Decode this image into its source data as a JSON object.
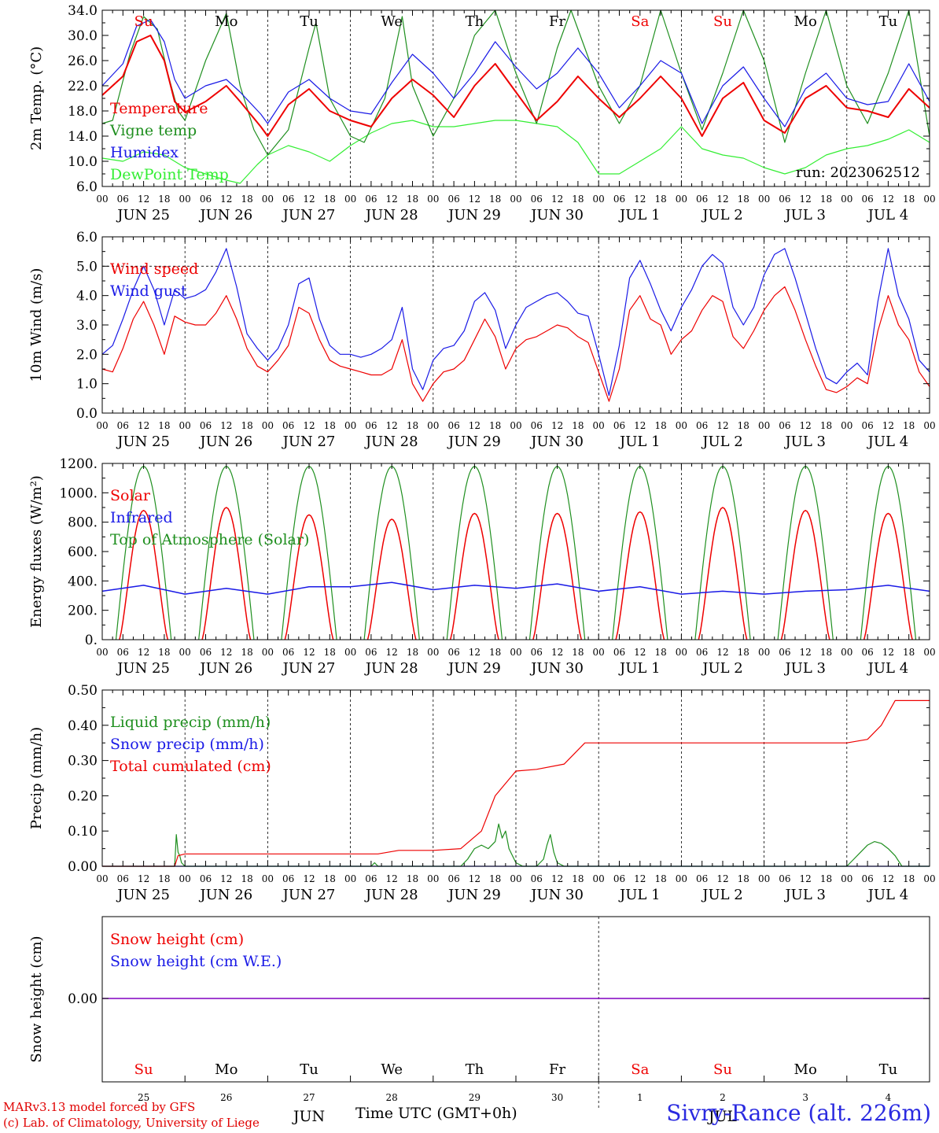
{
  "colors": {
    "red": "#ee0000",
    "dark_green": "#1f8f1f",
    "blue": "#1a1ae6",
    "light_green": "#33ee33",
    "purple": "#8000c0",
    "black": "#000000"
  },
  "run_label": "run: 2023062512",
  "day_labels": [
    "Su",
    "Mo",
    "Tu",
    "We",
    "Th",
    "Fr",
    "Sa",
    "Su",
    "Mo",
    "Tu"
  ],
  "date_labels": [
    "JUN 25",
    "JUN 26",
    "JUN 27",
    "JUN 28",
    "JUN 29",
    "JUN 30",
    "JUL  1",
    "JUL  2",
    "JUL  3",
    "JUL  4"
  ],
  "hour_labels": [
    "00",
    "06",
    "12",
    "18"
  ],
  "hour_end_label": "00",
  "bottom_day_numbers": [
    "25",
    "26",
    "27",
    "28",
    "29",
    "30",
    "1",
    "2",
    "3",
    "4"
  ],
  "bottom_month_labels": [
    "JUN",
    "JUL"
  ],
  "xaxis_title": "Time UTC (GMT+0h)",
  "credit_line1": "MARv3.13 model forced by GFS",
  "credit_line2": "(c) Lab. of Climatology, University of Liege",
  "station": "Sivry-Rance (alt. 226m)",
  "chart_data": [
    {
      "type": "line",
      "id": "temperature",
      "ylabel": "2m Temp. (°C)",
      "ylim": [
        6,
        34
      ],
      "yticks": [
        "6.0",
        "10.0",
        "14.0",
        "18.0",
        "22.0",
        "26.0",
        "30.0",
        "34.0"
      ],
      "x_unit": "hours since 2023-06-25 00 UTC",
      "grid": "vertical dashed at 00 UTC",
      "legend": [
        "Temperature",
        "Vigne temp",
        "Humidex",
        "DewPoint Temp"
      ],
      "series": [
        {
          "name": "Temperature",
          "color": "red",
          "x": [
            0,
            6,
            10,
            14,
            18,
            21,
            24,
            30,
            36,
            40,
            46,
            48,
            54,
            60,
            66,
            72,
            78,
            84,
            90,
            96,
            102,
            108,
            114,
            120,
            126,
            132,
            138,
            144,
            150,
            156,
            162,
            168,
            174,
            180,
            186,
            192,
            198,
            204,
            210,
            216,
            222,
            228,
            234,
            240
          ],
          "y": [
            20.5,
            23.5,
            29.0,
            30.0,
            26.0,
            19.5,
            17.8,
            19.5,
            22.0,
            19.5,
            15.5,
            14.0,
            19.0,
            21.5,
            18.0,
            16.5,
            15.5,
            20.0,
            23.0,
            20.5,
            17.0,
            22.0,
            25.5,
            21.0,
            16.5,
            19.5,
            23.5,
            20.0,
            17.0,
            20.0,
            23.5,
            20.0,
            14.0,
            20.0,
            22.5,
            16.5,
            14.5,
            20.0,
            22.0,
            18.5,
            18.0,
            17.0,
            21.5,
            18.5
          ]
        },
        {
          "name": "Vigne temp",
          "color": "dark_green",
          "x": [
            0,
            3,
            8,
            12,
            16,
            19,
            22,
            24,
            30,
            36,
            40,
            44,
            48,
            54,
            60,
            62,
            66,
            72,
            76,
            82,
            87,
            90,
            96,
            102,
            108,
            114,
            120,
            126,
            132,
            136,
            144,
            150,
            156,
            162,
            168,
            174,
            180,
            186,
            192,
            198,
            204,
            210,
            216,
            222,
            228,
            234,
            240
          ],
          "y": [
            16.0,
            16.5,
            27.0,
            33.0,
            31.0,
            24.0,
            18.0,
            16.5,
            26.0,
            33.5,
            22.0,
            15.0,
            11.0,
            15.0,
            28.0,
            32.0,
            20.0,
            14.0,
            13.0,
            20.0,
            33.0,
            22.0,
            14.0,
            20.0,
            30.0,
            34.0,
            24.0,
            16.0,
            28.0,
            34.0,
            22.0,
            16.0,
            22.0,
            34.0,
            24.0,
            15.0,
            24.0,
            34.0,
            26.0,
            13.0,
            24.0,
            34.0,
            22.0,
            16.0,
            24.0,
            34.0,
            14.0
          ]
        },
        {
          "name": "Humidex",
          "color": "blue",
          "x": [
            0,
            6,
            10,
            14,
            18,
            21,
            24,
            30,
            36,
            40,
            46,
            48,
            54,
            60,
            66,
            72,
            78,
            84,
            90,
            96,
            102,
            108,
            114,
            120,
            126,
            132,
            138,
            144,
            150,
            156,
            162,
            168,
            174,
            180,
            186,
            192,
            198,
            204,
            210,
            216,
            222,
            228,
            234,
            240
          ],
          "y": [
            22.0,
            25.5,
            31.5,
            32.5,
            29.0,
            23.0,
            20.0,
            22.0,
            23.0,
            21.0,
            17.5,
            16.0,
            21.0,
            23.0,
            20.0,
            18.0,
            17.5,
            22.5,
            27.0,
            24.0,
            20.0,
            24.0,
            29.0,
            25.0,
            21.5,
            24.0,
            28.0,
            24.0,
            18.5,
            22.0,
            26.0,
            24.0,
            16.0,
            22.0,
            25.0,
            20.0,
            15.5,
            21.5,
            24.0,
            20.0,
            19.0,
            19.5,
            25.5,
            19.5
          ]
        },
        {
          "name": "DewPoint Temp",
          "color": "light_green",
          "x": [
            0,
            6,
            12,
            18,
            24,
            30,
            36,
            40,
            45,
            48,
            54,
            60,
            66,
            72,
            78,
            84,
            90,
            96,
            102,
            108,
            114,
            120,
            126,
            132,
            138,
            144,
            150,
            156,
            162,
            168,
            174,
            180,
            186,
            192,
            198,
            204,
            210,
            216,
            222,
            228,
            234,
            240
          ],
          "y": [
            10.5,
            10.0,
            11.5,
            11.0,
            9.0,
            8.0,
            7.0,
            6.5,
            9.5,
            11.0,
            12.5,
            11.5,
            10.0,
            12.5,
            14.5,
            16.0,
            16.5,
            15.5,
            15.5,
            16.0,
            16.5,
            16.5,
            16.0,
            15.5,
            13.0,
            8.0,
            8.0,
            10.0,
            12.0,
            15.5,
            12.0,
            11.0,
            10.5,
            9.0,
            8.0,
            9.0,
            11.0,
            12.0,
            12.5,
            13.5,
            15.0,
            13.0
          ]
        }
      ]
    },
    {
      "type": "line",
      "id": "wind",
      "ylabel": "10m Wind (m/s)",
      "ylim": [
        0,
        6
      ],
      "yticks": [
        "0.0",
        "1.0",
        "2.0",
        "3.0",
        "4.0",
        "5.0",
        "6.0"
      ],
      "reference_line": 5.0,
      "legend": [
        "Wind speed",
        "Wind gust"
      ],
      "series": [
        {
          "name": "Wind speed",
          "color": "red",
          "x": [
            0,
            3,
            6,
            9,
            12,
            15,
            18,
            21,
            24,
            27,
            30,
            33,
            36,
            39,
            42,
            45,
            48,
            51,
            54,
            57,
            60,
            63,
            66,
            69,
            72,
            75,
            78,
            81,
            84,
            87,
            90,
            93,
            96,
            99,
            102,
            105,
            108,
            111,
            114,
            117,
            120,
            123,
            126,
            129,
            132,
            135,
            138,
            141,
            144,
            147,
            150,
            153,
            156,
            159,
            162,
            165,
            168,
            171,
            174,
            177,
            180,
            183,
            186,
            189,
            192,
            195,
            198,
            201,
            204,
            207,
            210,
            213,
            216,
            219,
            222,
            225,
            228,
            231,
            234,
            237,
            240
          ],
          "y": [
            1.5,
            1.4,
            2.2,
            3.2,
            3.8,
            3.0,
            2.0,
            3.3,
            3.1,
            3.0,
            3.0,
            3.4,
            4.0,
            3.2,
            2.2,
            1.6,
            1.4,
            1.8,
            2.3,
            3.6,
            3.4,
            2.5,
            1.8,
            1.6,
            1.5,
            1.4,
            1.3,
            1.3,
            1.5,
            2.5,
            1.0,
            0.4,
            1.0,
            1.4,
            1.5,
            1.8,
            2.5,
            3.2,
            2.6,
            1.5,
            2.2,
            2.5,
            2.6,
            2.8,
            3.0,
            2.9,
            2.6,
            2.4,
            1.4,
            0.4,
            1.5,
            3.5,
            4.0,
            3.2,
            3.0,
            2.0,
            2.5,
            2.8,
            3.5,
            4.0,
            3.8,
            2.6,
            2.2,
            2.8,
            3.5,
            4.0,
            4.3,
            3.5,
            2.5,
            1.6,
            0.8,
            0.7,
            0.9,
            1.2,
            1.0,
            2.8,
            4.0,
            3.0,
            2.5,
            1.4,
            0.9
          ]
        },
        {
          "name": "Wind gust",
          "color": "blue",
          "x": [
            0,
            3,
            6,
            9,
            12,
            15,
            18,
            21,
            24,
            27,
            30,
            33,
            36,
            39,
            42,
            45,
            48,
            51,
            54,
            57,
            60,
            63,
            66,
            69,
            72,
            75,
            78,
            81,
            84,
            87,
            90,
            93,
            96,
            99,
            102,
            105,
            108,
            111,
            114,
            117,
            120,
            123,
            126,
            129,
            132,
            135,
            138,
            141,
            144,
            147,
            150,
            153,
            156,
            159,
            162,
            165,
            168,
            171,
            174,
            177,
            180,
            183,
            186,
            189,
            192,
            195,
            198,
            201,
            204,
            207,
            210,
            213,
            216,
            219,
            222,
            225,
            228,
            231,
            234,
            237,
            240
          ],
          "y": [
            2.0,
            2.3,
            3.2,
            4.2,
            5.0,
            4.2,
            3.0,
            4.2,
            3.9,
            4.0,
            4.2,
            4.8,
            5.6,
            4.3,
            2.7,
            2.2,
            1.8,
            2.2,
            3.0,
            4.4,
            4.6,
            3.2,
            2.3,
            2.0,
            2.0,
            1.9,
            2.0,
            2.2,
            2.5,
            3.6,
            1.5,
            0.8,
            1.8,
            2.2,
            2.3,
            2.8,
            3.8,
            4.1,
            3.5,
            2.2,
            3.0,
            3.6,
            3.8,
            4.0,
            4.1,
            3.8,
            3.4,
            3.3,
            2.0,
            0.6,
            2.3,
            4.6,
            5.2,
            4.4,
            3.5,
            2.8,
            3.6,
            4.2,
            5.0,
            5.4,
            5.1,
            3.6,
            3.0,
            3.6,
            4.7,
            5.4,
            5.6,
            4.6,
            3.4,
            2.2,
            1.2,
            1.0,
            1.4,
            1.7,
            1.3,
            3.8,
            5.6,
            4.0,
            3.2,
            1.8,
            1.4
          ]
        }
      ]
    },
    {
      "type": "line",
      "id": "energy",
      "ylabel": "Energy fluxes (W/m²)",
      "ylim": [
        0,
        1200
      ],
      "yticks": [
        "0.",
        "200.",
        "400.",
        "600.",
        "800.",
        "1000.",
        "1200."
      ],
      "legend": [
        "Solar",
        "Infrared",
        "Top of Atmosphere (Solar)"
      ],
      "toa_peak": 1180,
      "toa_daylight_hours": [
        4,
        20
      ],
      "solar_daily_peaks": [
        880,
        900,
        850,
        820,
        860,
        860,
        870,
        900,
        880,
        860
      ],
      "infrared": {
        "x": [
          0,
          12,
          24,
          36,
          48,
          60,
          72,
          84,
          96,
          108,
          120,
          132,
          144,
          156,
          168,
          180,
          192,
          204,
          216,
          228,
          240
        ],
        "y": [
          330,
          370,
          310,
          350,
          310,
          360,
          360,
          390,
          340,
          370,
          350,
          380,
          330,
          360,
          310,
          330,
          310,
          330,
          340,
          370,
          330
        ]
      },
      "series_colors": {
        "Solar": "red",
        "Infrared": "blue",
        "Top of Atmosphere (Solar)": "dark_green"
      }
    },
    {
      "type": "line",
      "id": "precip",
      "ylabel": "Precip (mm/h)",
      "ylim": [
        0,
        0.5
      ],
      "yticks": [
        "0.00",
        "0.10",
        "0.20",
        "0.30",
        "0.40",
        "0.50"
      ],
      "legend": [
        "Liquid precip (mm/h)",
        "Snow precip (mm/h)",
        "Total cumulated (cm)"
      ],
      "series": [
        {
          "name": "Total cumulated (cm)",
          "color": "red",
          "x": [
            0,
            21,
            22,
            24,
            80,
            86,
            96,
            104,
            110,
            114,
            120,
            126,
            134,
            138,
            140,
            144,
            168,
            216,
            222,
            226,
            230,
            240
          ],
          "y": [
            0.0,
            0.0,
            0.03,
            0.035,
            0.035,
            0.045,
            0.045,
            0.05,
            0.1,
            0.2,
            0.27,
            0.275,
            0.29,
            0.33,
            0.35,
            0.35,
            0.35,
            0.35,
            0.36,
            0.4,
            0.47,
            0.47
          ]
        },
        {
          "name": "Liquid precip (mm/h)",
          "color": "dark_green",
          "x": [
            0,
            21,
            21.5,
            22,
            22.5,
            23,
            24,
            78,
            79,
            80,
            104,
            106,
            108,
            110,
            112,
            114,
            115,
            116,
            117,
            118,
            120,
            122,
            126,
            128,
            129,
            130,
            131,
            132,
            134,
            140,
            168,
            216,
            218,
            220,
            222,
            224,
            226,
            228,
            230,
            232,
            240
          ],
          "y": [
            0,
            0,
            0.09,
            0.04,
            0.03,
            0.01,
            0,
            0,
            0.01,
            0,
            0,
            0.02,
            0.05,
            0.06,
            0.05,
            0.07,
            0.12,
            0.08,
            0.1,
            0.05,
            0.01,
            0,
            0,
            0.02,
            0.06,
            0.09,
            0.04,
            0.01,
            0,
            0,
            0,
            0,
            0.02,
            0.04,
            0.06,
            0.07,
            0.065,
            0.05,
            0.03,
            0,
            0
          ]
        },
        {
          "name": "Snow precip (mm/h)",
          "color": "blue",
          "x": [
            0,
            240
          ],
          "y": [
            0,
            0
          ]
        }
      ]
    },
    {
      "type": "line",
      "id": "snow",
      "ylabel": "Snow height (cm)",
      "ytick_label": "0.00",
      "legend": [
        "Snow height (cm)",
        "Snow height (cm W.E.)"
      ],
      "series": [
        {
          "name": "Snow height (cm)",
          "color": "red",
          "x": [
            0,
            240
          ],
          "y": [
            0,
            0
          ]
        },
        {
          "name": "Snow height (cm W.E.)",
          "color": "blue",
          "x": [
            0,
            240
          ],
          "y": [
            0,
            0
          ]
        }
      ]
    }
  ]
}
